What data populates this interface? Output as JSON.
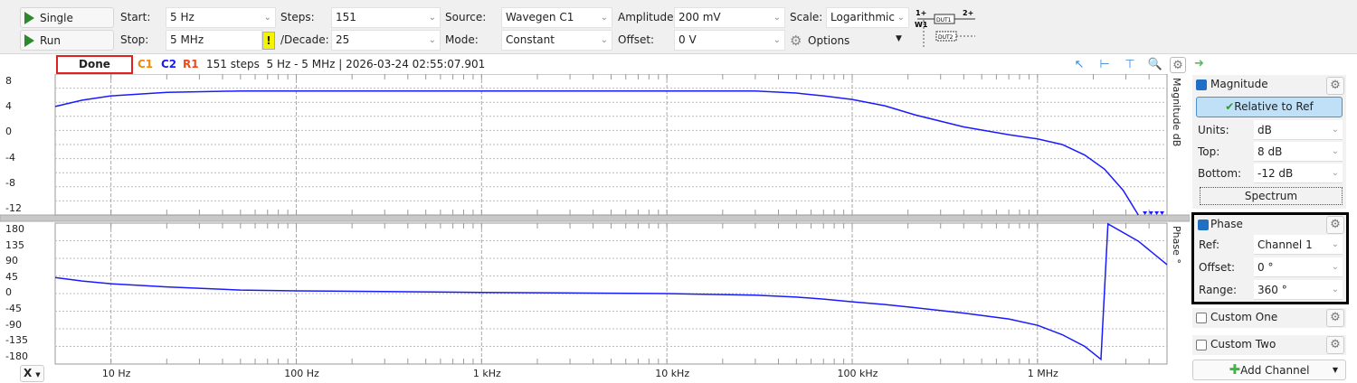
{
  "toolbar": {
    "single": "Single",
    "run": "Run",
    "start_label": "Start:",
    "start": "5 Hz",
    "stop_label": "Stop:",
    "stop": "5 MHz",
    "warning": "!",
    "steps_label": "Steps:",
    "steps": "151",
    "decade_label": "/Decade:",
    "decade": "25",
    "source_label": "Source:",
    "source": "Wavegen C1",
    "mode_label": "Mode:",
    "mode": "Constant",
    "amplitude_label": "Amplitude:",
    "amplitude": "200 mV",
    "offset_label": "Offset:",
    "offset": "0 V",
    "scale_label": "Scale:",
    "scale": "Logarithmic",
    "options": "Options",
    "diagram": {
      "in": "1+",
      "w": "W1",
      "dut1": "DUT1",
      "out": "2+",
      "dut2": "DUT2"
    }
  },
  "status": {
    "state": "Done",
    "c1": "C1",
    "c2": "C2",
    "r1": "R1",
    "info": "151 steps  5 Hz - 5 MHz | 2026-03-24 02:55:07.901"
  },
  "colors": {
    "trace": "#1a1aff",
    "c1": "#f08a00",
    "c2": "#1a1aff",
    "r1": "#e84a1a",
    "done_border": "#e32020"
  },
  "chart_data": [
    {
      "type": "line",
      "title": "Magnitude",
      "ylabel": "Magnitude dB",
      "xscale": "log",
      "xlim": [
        5,
        5000000
      ],
      "ylim": [
        -12,
        8
      ],
      "yticks": [
        "8",
        "4",
        "0",
        "-4",
        "-8",
        "-12"
      ],
      "series": [
        {
          "name": "C2 Magnitude",
          "x": [
            5,
            7,
            10,
            20,
            50,
            100,
            1000,
            10000,
            30000,
            50000,
            70000,
            100000,
            150000,
            219000,
            400000,
            700000,
            1000000,
            1360000,
            1800000,
            2300000,
            2900000,
            3500000
          ],
          "y": [
            3.4,
            4.3,
            4.9,
            5.4,
            5.6,
            5.6,
            5.6,
            5.6,
            5.6,
            5.3,
            4.9,
            4.4,
            3.5,
            2.2,
            0.5,
            -0.6,
            -1.2,
            -2,
            -3.5,
            -5.5,
            -8.5,
            -12
          ]
        }
      ],
      "clipped_below_x": [
        3800000,
        4100000,
        4400000,
        4700000
      ]
    },
    {
      "type": "line",
      "title": "Phase",
      "ylabel": "Phase °",
      "xscale": "log",
      "xlim": [
        5,
        5000000
      ],
      "ylim": [
        -180,
        180
      ],
      "yticks": [
        "180",
        "135",
        "90",
        "45",
        "0",
        "-45",
        "-90",
        "-135",
        "-180"
      ],
      "series": [
        {
          "name": "C2 Phase",
          "x": [
            5,
            7,
            10,
            20,
            50,
            100,
            1000,
            10000,
            30000,
            50000,
            70000,
            100000,
            150000,
            219000,
            400000,
            700000,
            1000000,
            1360000,
            1800000,
            2200000,
            2400000,
            3500000,
            5000000
          ],
          "y": [
            41,
            32,
            25,
            17,
            9,
            7,
            3,
            0,
            -4,
            -9,
            -14,
            -21,
            -28,
            -36,
            -50,
            -65,
            -81,
            -105,
            -135,
            -168,
            178,
            134,
            74
          ]
        }
      ]
    }
  ],
  "xaxis": {
    "ticks": [
      {
        "f": 10,
        "label": "10 Hz"
      },
      {
        "f": 100,
        "label": "100 Hz"
      },
      {
        "f": 1000,
        "label": "1 kHz"
      },
      {
        "f": 10000,
        "label": "10 kHz"
      },
      {
        "f": 100000,
        "label": "100 kHz"
      },
      {
        "f": 1000000,
        "label": "1 MHz"
      }
    ],
    "select": "X"
  },
  "side_labels": {
    "mag": "Magnitude  dB",
    "phase": "Phase  °"
  },
  "panel": {
    "magnitude": {
      "title": "Magnitude",
      "relative": "Relative to Ref",
      "units_label": "Units:",
      "units": "dB",
      "top_label": "Top:",
      "top": "8 dB",
      "bottom_label": "Bottom:",
      "bottom": "-12 dB",
      "spectrum": "Spectrum"
    },
    "phase": {
      "title": "Phase",
      "ref_label": "Ref:",
      "ref": "Channel 1",
      "offset_label": "Offset:",
      "offset": "0 °",
      "range_label": "Range:",
      "range": "360 °"
    },
    "custom_one": "Custom One",
    "custom_two": "Custom Two",
    "add_channel": "Add Channel"
  }
}
